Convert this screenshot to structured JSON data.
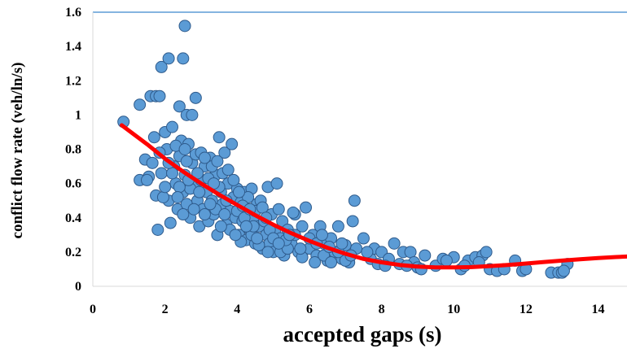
{
  "chart_data": {
    "type": "scatter",
    "xlabel": "accepted gaps (s)",
    "ylabel": "conflict flow rate (veh/ln/s)",
    "xlim": [
      0,
      14.8
    ],
    "ylim": [
      0,
      1.6
    ],
    "x_ticks": [
      0,
      2,
      4,
      6,
      8,
      10,
      12,
      14
    ],
    "y_ticks": [
      0,
      0.2,
      0.4,
      0.6,
      0.8,
      1,
      1.2,
      1.4,
      1.6
    ],
    "y_tick_labels": [
      "0",
      "0.2",
      "0.4",
      "0.6",
      "0.8",
      "1",
      "1.2",
      "1.4",
      "1.6"
    ],
    "grid": false,
    "colors": {
      "points": "#5b9bd5",
      "point_edge": "#2f5b8c",
      "trend": "#ff0000",
      "top_border": "#5b9bd5"
    },
    "series": [
      {
        "kind": "points",
        "points": [
          [
            0.85,
            0.96
          ],
          [
            1.3,
            1.06
          ],
          [
            1.6,
            1.11
          ],
          [
            1.75,
            1.11
          ],
          [
            1.85,
            1.11
          ],
          [
            1.9,
            1.28
          ],
          [
            2.1,
            1.33
          ],
          [
            2.5,
            1.33
          ],
          [
            2.55,
            1.52
          ],
          [
            2.4,
            1.05
          ],
          [
            2.85,
            1.1
          ],
          [
            2.6,
            1.0
          ],
          [
            2.75,
            1.0
          ],
          [
            1.3,
            0.62
          ],
          [
            1.45,
            0.74
          ],
          [
            1.55,
            0.64
          ],
          [
            1.7,
            0.87
          ],
          [
            1.8,
            0.33
          ],
          [
            1.75,
            0.53
          ],
          [
            1.9,
            0.66
          ],
          [
            2.0,
            0.9
          ],
          [
            2.05,
            0.8
          ],
          [
            2.1,
            0.5
          ],
          [
            2.15,
            0.37
          ],
          [
            2.2,
            0.93
          ],
          [
            2.25,
            0.7
          ],
          [
            2.3,
            0.6
          ],
          [
            2.35,
            0.45
          ],
          [
            2.4,
            0.76
          ],
          [
            2.45,
            0.85
          ],
          [
            2.5,
            0.55
          ],
          [
            2.55,
            0.65
          ],
          [
            2.6,
            0.48
          ],
          [
            2.65,
            0.83
          ],
          [
            2.7,
            0.4
          ],
          [
            2.75,
            0.72
          ],
          [
            2.8,
            0.58
          ],
          [
            2.85,
            0.77
          ],
          [
            2.9,
            0.5
          ],
          [
            2.95,
            0.35
          ],
          [
            3.0,
            0.62
          ],
          [
            3.05,
            0.45
          ],
          [
            3.1,
            0.7
          ],
          [
            3.15,
            0.55
          ],
          [
            3.2,
            0.38
          ],
          [
            3.25,
            0.75
          ],
          [
            3.3,
            0.5
          ],
          [
            3.35,
            0.42
          ],
          [
            3.4,
            0.65
          ],
          [
            3.45,
            0.3
          ],
          [
            3.5,
            0.87
          ],
          [
            3.55,
            0.55
          ],
          [
            3.6,
            0.48
          ],
          [
            3.65,
            0.78
          ],
          [
            3.7,
            0.36
          ],
          [
            3.75,
            0.6
          ],
          [
            3.8,
            0.44
          ],
          [
            3.85,
            0.83
          ],
          [
            3.9,
            0.52
          ],
          [
            3.95,
            0.4
          ],
          [
            4.0,
            0.57
          ],
          [
            4.05,
            0.3
          ],
          [
            4.1,
            0.49
          ],
          [
            4.15,
            0.38
          ],
          [
            4.2,
            0.55
          ],
          [
            4.25,
            0.27
          ],
          [
            4.3,
            0.45
          ],
          [
            4.35,
            0.33
          ],
          [
            4.4,
            0.57
          ],
          [
            4.45,
            0.4
          ],
          [
            4.5,
            0.25
          ],
          [
            4.55,
            0.48
          ],
          [
            4.6,
            0.35
          ],
          [
            4.65,
            0.5
          ],
          [
            4.7,
            0.22
          ],
          [
            4.75,
            0.38
          ],
          [
            4.8,
            0.3
          ],
          [
            4.85,
            0.58
          ],
          [
            4.9,
            0.25
          ],
          [
            4.95,
            0.42
          ],
          [
            5.0,
            0.2
          ],
          [
            5.05,
            0.32
          ],
          [
            5.1,
            0.6
          ],
          [
            5.15,
            0.45
          ],
          [
            5.2,
            0.28
          ],
          [
            5.25,
            0.38
          ],
          [
            5.3,
            0.18
          ],
          [
            5.4,
            0.33
          ],
          [
            5.5,
            0.25
          ],
          [
            5.6,
            0.42
          ],
          [
            5.7,
            0.2
          ],
          [
            5.8,
            0.35
          ],
          [
            5.9,
            0.46
          ],
          [
            6.0,
            0.22
          ],
          [
            6.1,
            0.3
          ],
          [
            6.2,
            0.18
          ],
          [
            6.3,
            0.35
          ],
          [
            6.4,
            0.25
          ],
          [
            6.5,
            0.15
          ],
          [
            6.6,
            0.28
          ],
          [
            6.7,
            0.2
          ],
          [
            6.8,
            0.35
          ],
          [
            6.9,
            0.16
          ],
          [
            7.0,
            0.24
          ],
          [
            7.1,
            0.14
          ],
          [
            7.2,
            0.38
          ],
          [
            7.25,
            0.5
          ],
          [
            7.3,
            0.22
          ],
          [
            7.5,
            0.28
          ],
          [
            7.7,
            0.16
          ],
          [
            7.8,
            0.22
          ],
          [
            7.9,
            0.13
          ],
          [
            8.0,
            0.2
          ],
          [
            8.2,
            0.16
          ],
          [
            8.35,
            0.25
          ],
          [
            8.5,
            0.13
          ],
          [
            8.6,
            0.2
          ],
          [
            8.8,
            0.2
          ],
          [
            8.9,
            0.14
          ],
          [
            9.0,
            0.11
          ],
          [
            9.2,
            0.18
          ],
          [
            9.5,
            0.12
          ],
          [
            9.7,
            0.16
          ],
          [
            10.0,
            0.17
          ],
          [
            10.2,
            0.1
          ],
          [
            10.4,
            0.15
          ],
          [
            10.6,
            0.17
          ],
          [
            10.8,
            0.18
          ],
          [
            10.9,
            0.2
          ],
          [
            11.0,
            0.1
          ],
          [
            11.2,
            0.09
          ],
          [
            11.7,
            0.15
          ],
          [
            11.9,
            0.09
          ],
          [
            12.7,
            0.08
          ],
          [
            12.9,
            0.08
          ],
          [
            13.0,
            0.08
          ],
          [
            13.15,
            0.13
          ],
          [
            1.5,
            0.62
          ],
          [
            1.65,
            0.72
          ],
          [
            1.95,
            0.52
          ],
          [
            2.2,
            0.66
          ],
          [
            2.3,
            0.82
          ],
          [
            2.5,
            0.42
          ],
          [
            2.6,
            0.73
          ],
          [
            2.7,
            0.57
          ],
          [
            2.9,
            0.66
          ],
          [
            3.0,
            0.78
          ],
          [
            3.1,
            0.42
          ],
          [
            3.2,
            0.63
          ],
          [
            3.3,
            0.7
          ],
          [
            3.4,
            0.45
          ],
          [
            3.5,
            0.58
          ],
          [
            3.6,
            0.66
          ],
          [
            3.7,
            0.5
          ],
          [
            3.8,
            0.33
          ],
          [
            3.9,
            0.62
          ],
          [
            4.0,
            0.44
          ],
          [
            4.1,
            0.26
          ],
          [
            4.2,
            0.4
          ],
          [
            4.3,
            0.52
          ],
          [
            4.4,
            0.3
          ],
          [
            4.5,
            0.44
          ],
          [
            4.6,
            0.24
          ],
          [
            4.7,
            0.46
          ],
          [
            4.8,
            0.4
          ],
          [
            4.9,
            0.33
          ],
          [
            5.0,
            0.28
          ],
          [
            5.2,
            0.2
          ],
          [
            5.4,
            0.22
          ],
          [
            5.6,
            0.3
          ],
          [
            5.8,
            0.17
          ],
          [
            6.0,
            0.28
          ],
          [
            6.2,
            0.25
          ],
          [
            6.4,
            0.18
          ],
          [
            6.6,
            0.14
          ],
          [
            6.8,
            0.2
          ],
          [
            7.0,
            0.15
          ],
          [
            3.1,
            0.75
          ],
          [
            2.4,
            0.58
          ],
          [
            2.8,
            0.45
          ],
          [
            3.35,
            0.6
          ],
          [
            3.55,
            0.35
          ],
          [
            4.15,
            0.47
          ],
          [
            4.45,
            0.35
          ],
          [
            5.35,
            0.27
          ],
          [
            5.75,
            0.22
          ],
          [
            6.15,
            0.14
          ],
          [
            6.55,
            0.23
          ],
          [
            7.15,
            0.18
          ],
          [
            2.0,
            0.58
          ],
          [
            2.35,
            0.52
          ],
          [
            2.65,
            0.62
          ],
          [
            2.95,
            0.55
          ],
          [
            3.25,
            0.48
          ],
          [
            3.65,
            0.42
          ],
          [
            3.95,
            0.3
          ],
          [
            4.25,
            0.35
          ],
          [
            4.55,
            0.28
          ],
          [
            4.85,
            0.2
          ],
          [
            5.15,
            0.25
          ],
          [
            5.45,
            0.3
          ],
          [
            1.85,
            0.78
          ],
          [
            2.1,
            0.72
          ],
          [
            2.55,
            0.8
          ],
          [
            3.45,
            0.73
          ],
          [
            3.75,
            0.68
          ],
          [
            4.05,
            0.55
          ],
          [
            4.35,
            0.45
          ],
          [
            5.55,
            0.43
          ],
          [
            6.35,
            0.3
          ],
          [
            6.9,
            0.25
          ],
          [
            7.6,
            0.2
          ],
          [
            8.1,
            0.12
          ],
          [
            8.7,
            0.12
          ],
          [
            9.1,
            0.1
          ],
          [
            9.8,
            0.15
          ],
          [
            10.3,
            0.12
          ],
          [
            10.7,
            0.14
          ],
          [
            11.4,
            0.1
          ],
          [
            12.0,
            0.1
          ],
          [
            13.05,
            0.09
          ]
        ]
      },
      {
        "kind": "trend",
        "points": [
          [
            0.8,
            0.94
          ],
          [
            1.5,
            0.83
          ],
          [
            2.0,
            0.745
          ],
          [
            2.5,
            0.67
          ],
          [
            3.0,
            0.6
          ],
          [
            3.5,
            0.535
          ],
          [
            4.0,
            0.475
          ],
          [
            4.5,
            0.415
          ],
          [
            5.0,
            0.36
          ],
          [
            5.5,
            0.31
          ],
          [
            6.0,
            0.265
          ],
          [
            6.5,
            0.225
          ],
          [
            7.0,
            0.19
          ],
          [
            7.5,
            0.16
          ],
          [
            8.0,
            0.14
          ],
          [
            8.5,
            0.125
          ],
          [
            9.0,
            0.115
          ],
          [
            9.5,
            0.11
          ],
          [
            10.0,
            0.11
          ],
          [
            10.5,
            0.112
          ],
          [
            11.0,
            0.118
          ],
          [
            11.5,
            0.125
          ],
          [
            12.0,
            0.133
          ],
          [
            12.5,
            0.142
          ],
          [
            13.0,
            0.15
          ],
          [
            13.5,
            0.158
          ],
          [
            14.0,
            0.165
          ],
          [
            14.5,
            0.171
          ],
          [
            14.8,
            0.174
          ]
        ]
      }
    ]
  }
}
